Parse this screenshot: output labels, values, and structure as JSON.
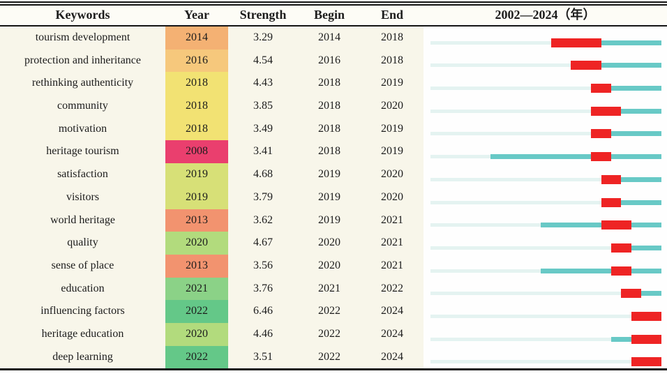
{
  "table": {
    "headers": {
      "keywords": "Keywords",
      "year": "Year",
      "strength": "Strength",
      "begin": "Begin",
      "end": "End",
      "timeline": "2002—2024（年）"
    },
    "colors": {
      "background_left": "#f8f6ea",
      "background_right": "#fefefe",
      "bar_pre": "#e4f3f1",
      "bar_active": "#68c9c6",
      "bar_burst": "#ee2424",
      "text": "#1c1c1c",
      "border": "#141414",
      "year_cell": {
        "2008": "#ea3f6e",
        "2013": "#f2936f",
        "2014": "#f4b173",
        "2016": "#f6c87c",
        "2018": "#f2e273",
        "2019": "#d7e077",
        "2020": "#b2db7d",
        "2021": "#8bd287",
        "2022": "#64c888"
      }
    }
  },
  "chart_data": {
    "type": "table",
    "columns": [
      "Keywords",
      "Year",
      "Strength",
      "Begin",
      "End",
      "2002—2024（年）"
    ],
    "timeline_start": 2002,
    "timeline_end": 2024,
    "rows": [
      {
        "keyword": "tourism development",
        "year": 2014,
        "strength": "3.29",
        "begin": 2014,
        "end": 2018
      },
      {
        "keyword": "protection and inheritance",
        "year": 2016,
        "strength": "4.54",
        "begin": 2016,
        "end": 2018
      },
      {
        "keyword": "rethinking authenticity",
        "year": 2018,
        "strength": "4.43",
        "begin": 2018,
        "end": 2019
      },
      {
        "keyword": "community",
        "year": 2018,
        "strength": "3.85",
        "begin": 2018,
        "end": 2020
      },
      {
        "keyword": "motivation",
        "year": 2018,
        "strength": "3.49",
        "begin": 2018,
        "end": 2019
      },
      {
        "keyword": "heritage tourism",
        "year": 2008,
        "strength": "3.41",
        "begin": 2018,
        "end": 2019
      },
      {
        "keyword": "satisfaction",
        "year": 2019,
        "strength": "4.68",
        "begin": 2019,
        "end": 2020
      },
      {
        "keyword": "visitors",
        "year": 2019,
        "strength": "3.79",
        "begin": 2019,
        "end": 2020
      },
      {
        "keyword": "world heritage",
        "year": 2013,
        "strength": "3.62",
        "begin": 2019,
        "end": 2021
      },
      {
        "keyword": "quality",
        "year": 2020,
        "strength": "4.67",
        "begin": 2020,
        "end": 2021
      },
      {
        "keyword": "sense of place",
        "year": 2013,
        "strength": "3.56",
        "begin": 2020,
        "end": 2021
      },
      {
        "keyword": "education",
        "year": 2021,
        "strength": "3.76",
        "begin": 2021,
        "end": 2022
      },
      {
        "keyword": "influencing factors",
        "year": 2022,
        "strength": "6.46",
        "begin": 2022,
        "end": 2024
      },
      {
        "keyword": "heritage education",
        "year": 2020,
        "strength": "4.46",
        "begin": 2022,
        "end": 2024
      },
      {
        "keyword": "deep learning",
        "year": 2022,
        "strength": "3.51",
        "begin": 2022,
        "end": 2024
      }
    ]
  }
}
